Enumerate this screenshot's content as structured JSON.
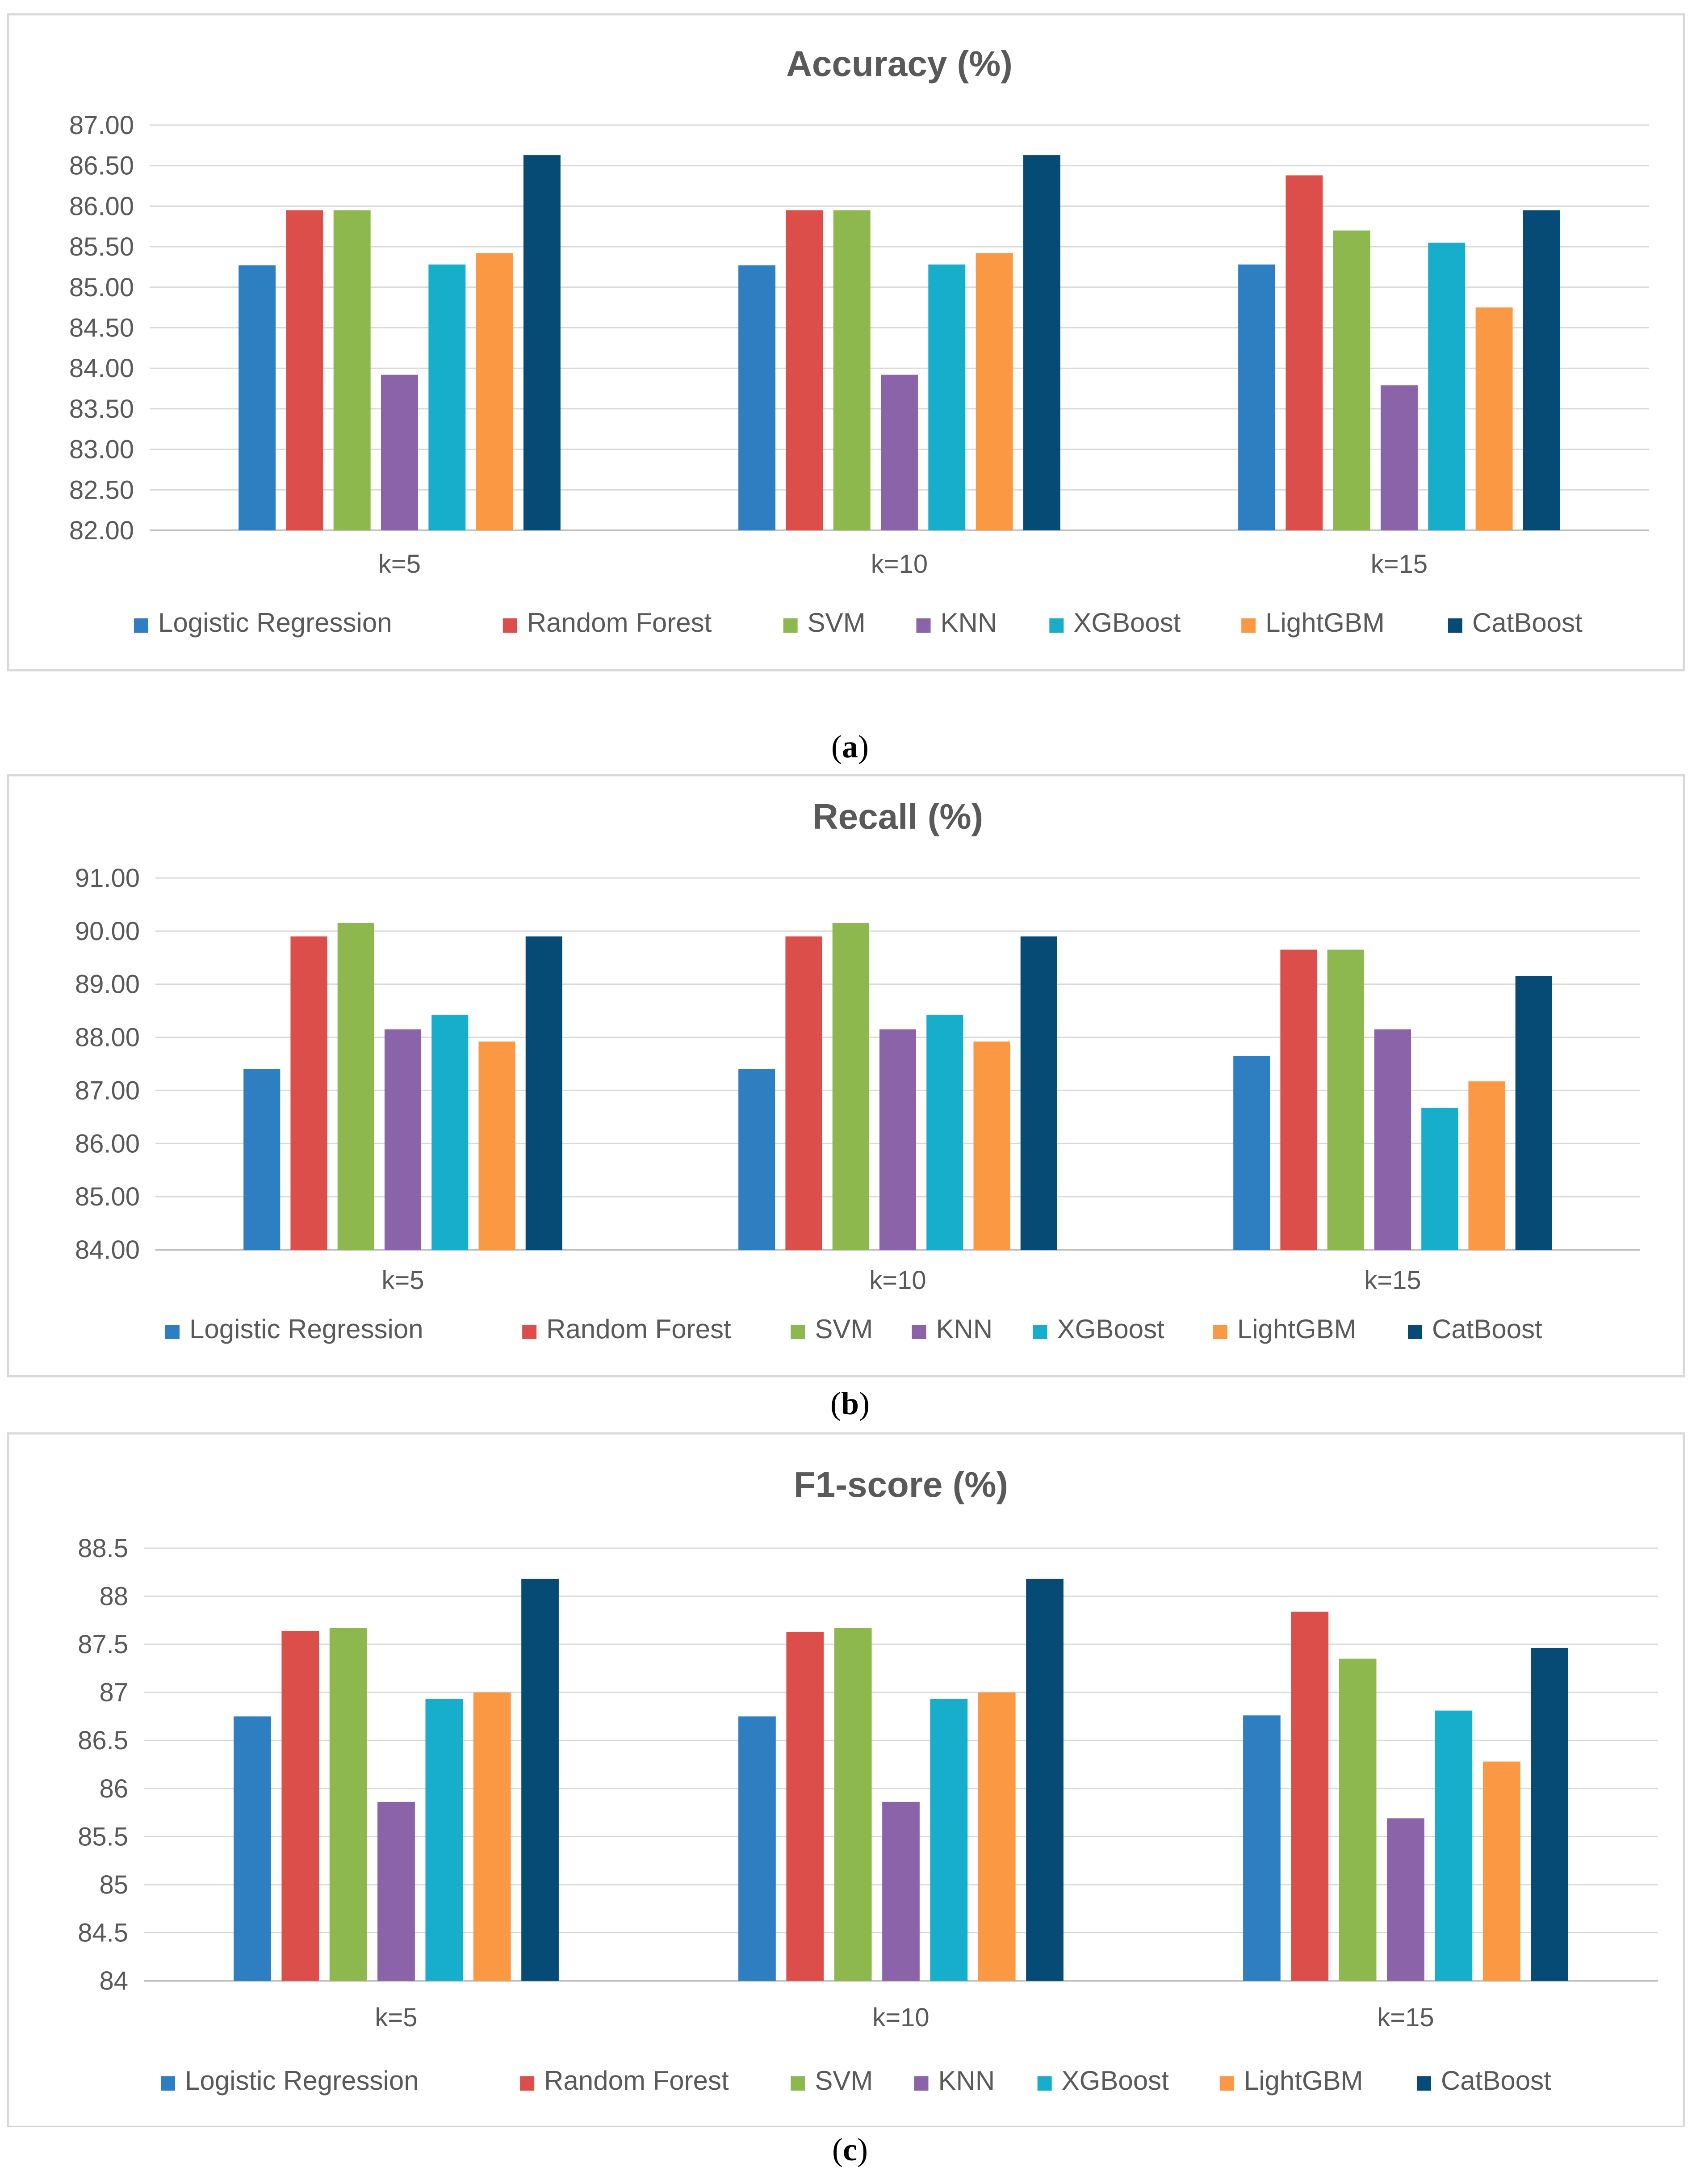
{
  "chart_data": [
    {
      "type": "bar",
      "title": "Accuracy (%)",
      "panel_label": "a",
      "categories": [
        "k=5",
        "k=10",
        "k=15"
      ],
      "ylim": [
        82,
        87
      ],
      "ytick_step": 0.5,
      "ytick_decimals": 2,
      "grid": true,
      "legend": "bottom",
      "series": [
        {
          "name": "Logistic Regression",
          "color": "#2E7FC1",
          "values": [
            85.27,
            85.27,
            85.28
          ]
        },
        {
          "name": "Random Forest",
          "color": "#DB4E4A",
          "values": [
            85.95,
            85.95,
            86.38
          ]
        },
        {
          "name": "SVM",
          "color": "#8DB84E",
          "values": [
            85.95,
            85.95,
            85.7
          ]
        },
        {
          "name": "KNN",
          "color": "#8A63A8",
          "values": [
            83.92,
            83.92,
            83.79
          ]
        },
        {
          "name": "XGBoost",
          "color": "#16AECB",
          "values": [
            85.28,
            85.28,
            85.55
          ]
        },
        {
          "name": "LightGBM",
          "color": "#FA9843",
          "values": [
            85.42,
            85.42,
            84.75
          ]
        },
        {
          "name": "CatBoost",
          "color": "#054B76",
          "values": [
            86.63,
            86.63,
            85.95
          ]
        }
      ]
    },
    {
      "type": "bar",
      "title": "Recall (%)",
      "panel_label": "b",
      "categories": [
        "k=5",
        "k=10",
        "k=15"
      ],
      "ylim": [
        84,
        91
      ],
      "ytick_step": 1,
      "ytick_decimals": 2,
      "grid": true,
      "legend": "bottom",
      "series": [
        {
          "name": "Logistic Regression",
          "color": "#2E7FC1",
          "values": [
            87.4,
            87.4,
            87.65
          ]
        },
        {
          "name": "Random Forest",
          "color": "#DB4E4A",
          "values": [
            89.9,
            89.9,
            89.65
          ]
        },
        {
          "name": "SVM",
          "color": "#8DB84E",
          "values": [
            90.15,
            90.15,
            89.65
          ]
        },
        {
          "name": "KNN",
          "color": "#8A63A8",
          "values": [
            88.15,
            88.15,
            88.15
          ]
        },
        {
          "name": "XGBoost",
          "color": "#16AECB",
          "values": [
            88.42,
            88.42,
            86.67
          ]
        },
        {
          "name": "LightGBM",
          "color": "#FA9843",
          "values": [
            87.92,
            87.92,
            87.17
          ]
        },
        {
          "name": "CatBoost",
          "color": "#054B76",
          "values": [
            89.9,
            89.9,
            89.15
          ]
        }
      ]
    },
    {
      "type": "bar",
      "title": "F1-score (%)",
      "panel_label": "c",
      "categories": [
        "k=5",
        "k=10",
        "k=15"
      ],
      "ylim": [
        84,
        88.5
      ],
      "ytick_step": 0.5,
      "ytick_decimals": -1,
      "grid": true,
      "legend": "bottom",
      "series": [
        {
          "name": "Logistic Regression",
          "color": "#2E7FC1",
          "values": [
            86.75,
            86.75,
            86.76
          ]
        },
        {
          "name": "Random Forest",
          "color": "#DB4E4A",
          "values": [
            87.64,
            87.63,
            87.84
          ]
        },
        {
          "name": "SVM",
          "color": "#8DB84E",
          "values": [
            87.67,
            87.67,
            87.35
          ]
        },
        {
          "name": "KNN",
          "color": "#8A63A8",
          "values": [
            85.86,
            85.86,
            85.69
          ]
        },
        {
          "name": "XGBoost",
          "color": "#16AECB",
          "values": [
            86.93,
            86.93,
            86.81
          ]
        },
        {
          "name": "LightGBM",
          "color": "#FA9843",
          "values": [
            87.0,
            87.0,
            86.28
          ]
        },
        {
          "name": "CatBoost",
          "color": "#054B76",
          "values": [
            88.18,
            88.18,
            87.46
          ]
        }
      ]
    }
  ]
}
